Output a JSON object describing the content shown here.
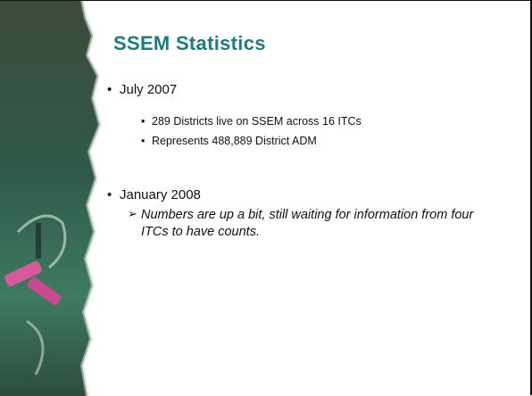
{
  "title": "SSEM Statistics",
  "bullets": [
    {
      "text": "July 2007",
      "sub": [
        "289 Districts live on SSEM across 16 ITCs",
        "Represents 488,889 District ADM"
      ]
    },
    {
      "text": "January 2008",
      "sub": [
        "Numbers are up a bit, still waiting for information from four ITCs to have counts."
      ]
    }
  ]
}
